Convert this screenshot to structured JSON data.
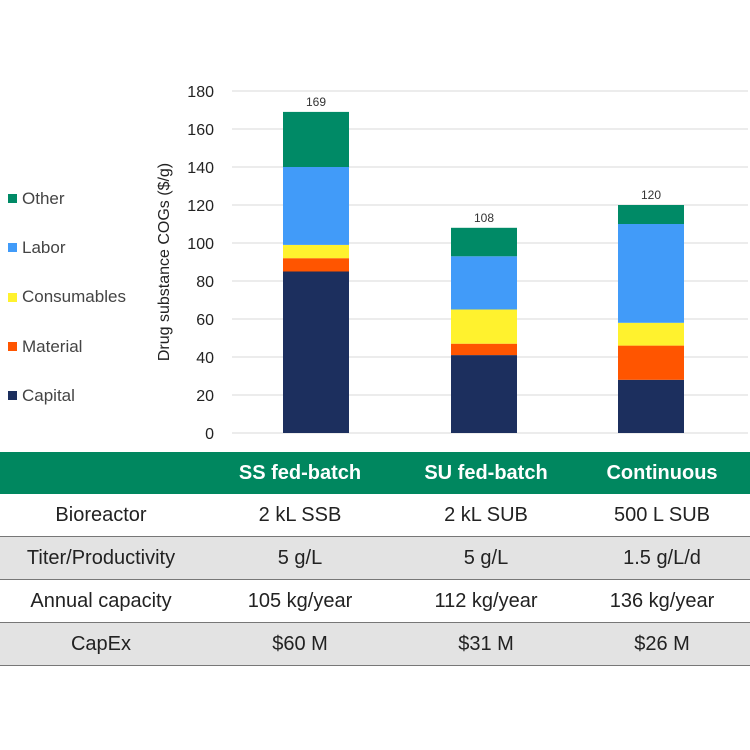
{
  "chart_data": {
    "type": "bar",
    "stacked": true,
    "categories": [
      "SS fed-batch",
      "SU fed-batch",
      "Continuous"
    ],
    "ylabel": "Drug substance COGs ($/g)",
    "xlabel": "",
    "ylim": [
      0,
      180
    ],
    "yticks": [
      0,
      20,
      40,
      60,
      80,
      100,
      120,
      140,
      160,
      180
    ],
    "grid": true,
    "legend_position": "left",
    "series": [
      {
        "name": "Capital",
        "color": "#1c2f5e",
        "values": [
          85,
          41,
          28
        ]
      },
      {
        "name": "Material",
        "color": "#ff5500",
        "values": [
          7,
          6,
          18
        ]
      },
      {
        "name": "Consumables",
        "color": "#fff22e",
        "values": [
          7,
          18,
          12
        ]
      },
      {
        "name": "Labor",
        "color": "#419bf9",
        "values": [
          41,
          28,
          52
        ]
      },
      {
        "name": "Other",
        "color": "#008a66",
        "values": [
          29,
          15,
          10
        ]
      }
    ],
    "totals": [
      169,
      108,
      120
    ]
  },
  "legend_order": [
    "Other",
    "Labor",
    "Consumables",
    "Material",
    "Capital"
  ],
  "table": {
    "header": [
      "",
      "SS fed-batch",
      "SU fed-batch",
      "Continuous"
    ],
    "rows": [
      [
        "Bioreactor",
        "2 kL SSB",
        "2 kL SUB",
        "500 L SUB"
      ],
      [
        "Titer/Productivity",
        "5 g/L",
        "5 g/L",
        "1.5 g/L/d"
      ],
      [
        "Annual capacity",
        "105 kg/year",
        "112 kg/year",
        "136 kg/year"
      ],
      [
        "CapEx",
        "$60 M",
        "$31 M",
        "$26 M"
      ]
    ]
  },
  "colors": {
    "header_bg": "#00875f",
    "row_shade": "#e3e3e3",
    "grid": "#d9d9d9"
  }
}
